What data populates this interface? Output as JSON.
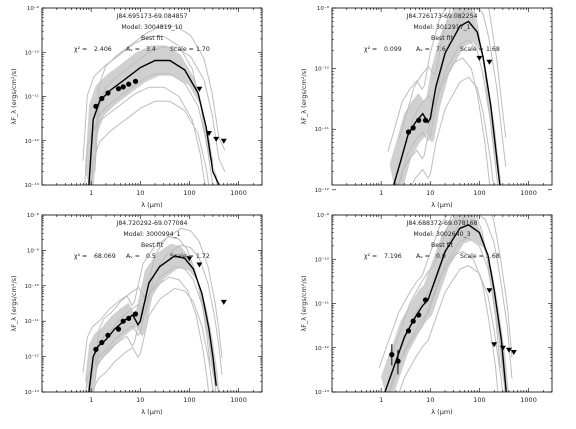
{
  "chart_data": [
    {
      "type": "line",
      "object": "J84.695173-69.084857",
      "model": "Model: 3004819_10",
      "fit_label": "Best fit",
      "chi2": "2.406",
      "av": "3.4",
      "scale": "1.70",
      "xlabel": "λ (μm)",
      "ylabel": "λF_λ (ergs/cm²/s)",
      "x_log": true,
      "y_log": true,
      "xlim": [
        0.1,
        3000
      ],
      "ylim": [
        1e-13,
        1e-09
      ],
      "x_ticks": [
        1,
        10,
        100,
        1000
      ],
      "y_ticks": [
        1e-09,
        1e-10,
        1e-11,
        1e-12,
        1e-13
      ],
      "points": [
        [
          1.25,
          6e-12
        ],
        [
          1.65,
          9e-12
        ],
        [
          2.2,
          1.2e-11
        ],
        [
          3.6,
          1.5e-11
        ],
        [
          4.5,
          1.65e-11
        ],
        [
          5.8,
          1.9e-11
        ],
        [
          8.0,
          2.2e-11
        ]
      ],
      "upper_limits": [
        [
          160,
          1.5e-11
        ],
        [
          250,
          1.5e-12
        ],
        [
          350,
          1.1e-12
        ],
        [
          500,
          1e-12
        ]
      ],
      "best_fit": [
        [
          0.9,
          1e-13
        ],
        [
          1.1,
          3e-12
        ],
        [
          1.5,
          8e-12
        ],
        [
          2.5,
          1.4e-11
        ],
        [
          5,
          2.5e-11
        ],
        [
          10,
          4.5e-11
        ],
        [
          20,
          6.5e-11
        ],
        [
          40,
          6.5e-11
        ],
        [
          80,
          4e-11
        ],
        [
          150,
          1.2e-11
        ],
        [
          220,
          2e-12
        ],
        [
          300,
          2e-13
        ],
        [
          400,
          1e-13
        ]
      ]
    },
    {
      "type": "line",
      "object": "J84.726173-69.082254",
      "model": "Model: 3012917_1",
      "fit_label": "Best fit",
      "chi2": "0.099",
      "av": "7.6",
      "scale": "1.68",
      "xlabel": "λ (μm)",
      "ylabel": "λF_λ (ergs/cm²/s)",
      "x_log": true,
      "y_log": true,
      "xlim": [
        0.1,
        3000
      ],
      "ylim": [
        1.2e-12,
        1e-09
      ],
      "x_ticks": [
        1,
        10,
        100,
        1000
      ],
      "y_ticks": [
        1e-09,
        1e-10,
        1e-11,
        1e-12
      ],
      "points": [
        [
          3.6,
          9e-12
        ],
        [
          4.5,
          1.05e-11
        ],
        [
          5.8,
          1.4e-11
        ],
        [
          8.0,
          1.4e-11
        ]
      ],
      "upper_limits": [
        [
          100,
          1.5e-10
        ],
        [
          160,
          1.3e-10
        ]
      ],
      "best_fit": [
        [
          1.8,
          1.2e-12
        ],
        [
          2.5,
          3e-12
        ],
        [
          3.5,
          8e-12
        ],
        [
          5,
          1.3e-11
        ],
        [
          7,
          1.8e-11
        ],
        [
          9,
          1.3e-11
        ],
        [
          10,
          1.5e-11
        ],
        [
          13,
          5e-11
        ],
        [
          20,
          1.8e-10
        ],
        [
          40,
          5e-10
        ],
        [
          60,
          6e-10
        ],
        [
          90,
          4e-10
        ],
        [
          120,
          1.5e-10
        ],
        [
          170,
          2.5e-11
        ],
        [
          220,
          4e-12
        ],
        [
          260,
          1.2e-12
        ]
      ]
    },
    {
      "type": "line",
      "object": "J84.720292-69.077084",
      "model": "Model: 3000994_1",
      "fit_label": "Best fit",
      "chi2": "68.069",
      "av": "0.5",
      "scale": "1.72",
      "xlabel": "λ (μm)",
      "ylabel": "λF_λ (ergs/cm²/s)",
      "x_log": true,
      "y_log": true,
      "xlim": [
        0.1,
        3000
      ],
      "ylim": [
        1e-13,
        1e-08
      ],
      "x_ticks": [
        1,
        10,
        100,
        1000
      ],
      "y_ticks": [
        1e-08,
        1e-09,
        1e-10,
        1e-11,
        1e-12,
        1e-13
      ],
      "points": [
        [
          1.25,
          1.6e-12
        ],
        [
          1.65,
          2.5e-12
        ],
        [
          2.2,
          4e-12
        ],
        [
          3.6,
          6e-12
        ],
        [
          4.5,
          1e-11
        ],
        [
          5.8,
          1.2e-11
        ],
        [
          8.0,
          1.6e-11
        ]
      ],
      "upper_limits": [
        [
          100,
          6e-10
        ],
        [
          160,
          4e-10
        ],
        [
          500,
          3.5e-11
        ]
      ],
      "best_fit": [
        [
          0.9,
          1e-13
        ],
        [
          1.1,
          1e-12
        ],
        [
          1.4,
          2e-12
        ],
        [
          2,
          3e-12
        ],
        [
          3,
          6e-12
        ],
        [
          5,
          1.1e-11
        ],
        [
          7,
          1.5e-11
        ],
        [
          9,
          8e-12
        ],
        [
          10,
          1e-11
        ],
        [
          15,
          1.2e-10
        ],
        [
          25,
          3.5e-10
        ],
        [
          50,
          7e-10
        ],
        [
          80,
          6e-10
        ],
        [
          120,
          3e-10
        ],
        [
          180,
          6e-11
        ],
        [
          250,
          6e-12
        ],
        [
          300,
          1e-12
        ],
        [
          350,
          1.5e-13
        ]
      ]
    },
    {
      "type": "line",
      "object": "J84.688372-69.078168",
      "model": "Model: 3002640_3",
      "fit_label": "Best fit",
      "chi2": "7.196",
      "av": "0.0",
      "scale": "1.68",
      "xlabel": "λ (μm)",
      "ylabel": "λF_λ (ergs/cm²/s)",
      "x_log": true,
      "y_log": true,
      "xlim": [
        0.1,
        3000
      ],
      "ylim": [
        1e-13,
        1e-09
      ],
      "x_ticks": [
        1,
        10,
        100,
        1000
      ],
      "y_ticks": [
        1e-09,
        1e-10,
        1e-11,
        1e-12,
        1e-13
      ],
      "points": [
        [
          1.65,
          7e-13
        ],
        [
          2.2,
          5e-13
        ],
        [
          3.6,
          2.4e-12
        ],
        [
          4.5,
          4e-12
        ],
        [
          5.8,
          5.5e-12
        ],
        [
          8.0,
          1.2e-11
        ]
      ],
      "error_bars": [
        [
          1.65,
          4e-13,
          1.2e-12
        ],
        [
          2.2,
          2.5e-13,
          9e-13
        ]
      ],
      "upper_limits": [
        [
          160,
          2e-11
        ],
        [
          200,
          1.2e-12
        ],
        [
          300,
          1e-12
        ],
        [
          400,
          9e-13
        ],
        [
          500,
          8e-13
        ]
      ],
      "best_fit": [
        [
          1.2,
          1e-13
        ],
        [
          2,
          5e-13
        ],
        [
          3,
          1.8e-12
        ],
        [
          5,
          5e-12
        ],
        [
          7,
          9e-12
        ],
        [
          9,
          1.2e-11
        ],
        [
          12,
          3e-11
        ],
        [
          20,
          1.5e-10
        ],
        [
          40,
          5e-10
        ],
        [
          60,
          6e-10
        ],
        [
          100,
          4e-10
        ],
        [
          150,
          1.2e-10
        ],
        [
          200,
          2e-11
        ],
        [
          280,
          1.5e-12
        ],
        [
          350,
          1e-13
        ]
      ]
    }
  ]
}
